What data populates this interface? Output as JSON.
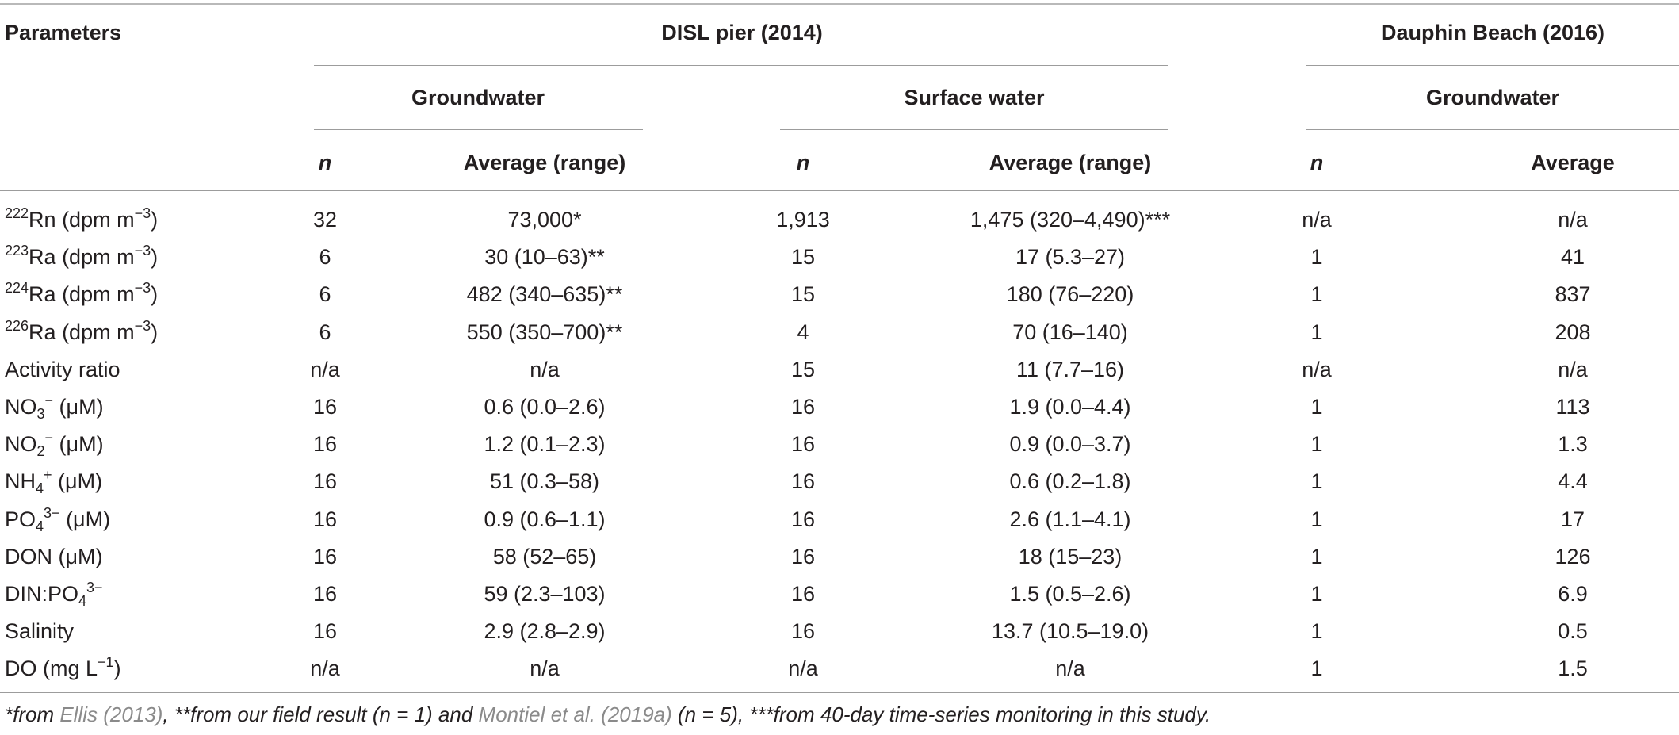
{
  "table": {
    "headers": {
      "parameters": "Parameters",
      "disl": "DISL pier (2014)",
      "dauphin": "Dauphin Beach (2016)",
      "gw1": "Groundwater",
      "sw": "Surface water",
      "gw2": "Groundwater",
      "n": "n",
      "avg_range": "Average (range)",
      "avg": "Average"
    },
    "rows": [
      {
        "param": {
          "pre": "",
          "sup1": "222",
          "base": "Rn (dpm m",
          "sup2": "−3",
          "sub": "",
          "post": ")"
        },
        "values": [
          "32",
          "73,000*",
          "1,913",
          "1,475 (320–4,490)***",
          "n/a",
          "n/a"
        ]
      },
      {
        "param": {
          "pre": "",
          "sup1": "223",
          "base": "Ra (dpm m",
          "sup2": "−3",
          "sub": "",
          "post": ")"
        },
        "values": [
          "6",
          "30 (10–63)**",
          "15",
          "17 (5.3–27)",
          "1",
          "41"
        ]
      },
      {
        "param": {
          "pre": "",
          "sup1": "224",
          "base": "Ra (dpm m",
          "sup2": "−3",
          "sub": "",
          "post": ")"
        },
        "values": [
          "6",
          "482 (340–635)**",
          "15",
          "180 (76–220)",
          "1",
          "837"
        ]
      },
      {
        "param": {
          "pre": "",
          "sup1": "226",
          "base": "Ra (dpm m",
          "sup2": "−3",
          "sub": "",
          "post": ")"
        },
        "values": [
          "6",
          "550 (350–700)**",
          "4",
          "70 (16–140)",
          "1",
          "208"
        ]
      },
      {
        "param": {
          "pre": "Activity ratio",
          "sup1": "",
          "base": "",
          "sup2": "",
          "sub": "",
          "post": ""
        },
        "values": [
          "n/a",
          "n/a",
          "15",
          "11 (7.7–16)",
          "n/a",
          "n/a"
        ]
      },
      {
        "param": {
          "pre": "NO",
          "sup1": "",
          "base": "",
          "sub": "3",
          "sup2": "−",
          "post": " (μM)"
        },
        "values": [
          "16",
          "0.6 (0.0–2.6)",
          "16",
          "1.9 (0.0–4.4)",
          "1",
          "113"
        ]
      },
      {
        "param": {
          "pre": "NO",
          "sup1": "",
          "base": "",
          "sub": "2",
          "sup2": "−",
          "post": " (μM)"
        },
        "values": [
          "16",
          "1.2 (0.1–2.3)",
          "16",
          "0.9 (0.0–3.7)",
          "1",
          "1.3"
        ]
      },
      {
        "param": {
          "pre": "NH",
          "sup1": "",
          "base": "",
          "sub": "4",
          "sup2": "+",
          "post": " (μM)"
        },
        "values": [
          "16",
          "51 (0.3–58)",
          "16",
          "0.6 (0.2–1.8)",
          "1",
          "4.4"
        ]
      },
      {
        "param": {
          "pre": "PO",
          "sup1": "",
          "base": "",
          "sub": "4",
          "sup2": "3−",
          "post": " (μM)"
        },
        "values": [
          "16",
          "0.9 (0.6–1.1)",
          "16",
          "2.6 (1.1–4.1)",
          "1",
          "17"
        ]
      },
      {
        "param": {
          "pre": "DON (μM)",
          "sup1": "",
          "base": "",
          "sup2": "",
          "sub": "",
          "post": ""
        },
        "values": [
          "16",
          "58 (52–65)",
          "16",
          "18 (15–23)",
          "1",
          "126"
        ]
      },
      {
        "param": {
          "pre": "DIN:PO",
          "sup1": "",
          "base": "",
          "sub": "4",
          "sup2": "3−",
          "post": ""
        },
        "values": [
          "16",
          "59 (2.3–103)",
          "16",
          "1.5 (0.5–2.6)",
          "1",
          "6.9"
        ]
      },
      {
        "param": {
          "pre": "Salinity",
          "sup1": "",
          "base": "",
          "sup2": "",
          "sub": "",
          "post": ""
        },
        "values": [
          "16",
          "2.9 (2.8–2.9)",
          "16",
          "13.7 (10.5–19.0)",
          "1",
          "0.5"
        ]
      },
      {
        "param": {
          "pre": "DO (mg L",
          "sup1": "",
          "base": "",
          "sub": "",
          "sup2": "−1",
          "post": ")"
        },
        "values": [
          "n/a",
          "n/a",
          "n/a",
          "n/a",
          "1",
          "1.5"
        ]
      }
    ]
  },
  "footnote": {
    "t1": "*from ",
    "ref1": "Ellis (2013)",
    "t2": ", **from our field result (n = 1) and ",
    "ref2": "Montiel et al. (2019a)",
    "t3": " (n = 5), ***from 40-day time-series monitoring in this study."
  }
}
